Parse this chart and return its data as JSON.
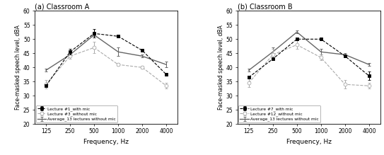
{
  "freqs": [
    125,
    250,
    500,
    1000,
    2000,
    4000
  ],
  "classroom_A": {
    "title": "(a) Classroom A",
    "y_with_mic": [
      33.5,
      45.5,
      52.0,
      51.0,
      46.0,
      37.5
    ],
    "yerr_with_mic": [
      0.5,
      1.0,
      1.5,
      0.5,
      0.5,
      0.5
    ],
    "y_without_mic": [
      34.0,
      44.0,
      47.0,
      41.0,
      40.0,
      33.5
    ],
    "yerr_without_mic": [
      1.5,
      1.0,
      2.0,
      0.5,
      0.5,
      1.0
    ],
    "y_average": [
      39.0,
      44.5,
      51.5,
      45.5,
      44.0,
      41.0
    ],
    "yerr_average": [
      0.5,
      0.5,
      0.5,
      1.5,
      0.5,
      1.0
    ],
    "legend1": "Lecture #1_with mic",
    "legend2": "Lecture #3_without mic",
    "legend3": "Average_13 lectures without mic"
  },
  "classroom_B": {
    "title": "(b) Classroom B",
    "y_with_mic": [
      36.5,
      43.0,
      50.0,
      50.0,
      44.0,
      37.0
    ],
    "yerr_with_mic": [
      0.5,
      0.5,
      0.5,
      0.5,
      0.5,
      1.5
    ],
    "y_without_mic": [
      34.5,
      44.5,
      48.0,
      43.5,
      34.0,
      33.5
    ],
    "yerr_without_mic": [
      1.5,
      2.0,
      1.5,
      1.0,
      1.5,
      1.0
    ],
    "y_average": [
      39.0,
      45.5,
      52.5,
      45.5,
      44.5,
      41.0
    ],
    "yerr_average": [
      0.5,
      1.5,
      0.5,
      1.0,
      0.5,
      0.5
    ],
    "legend1": "Lecture #7_with mic",
    "legend2": "Lecture #12_without mic",
    "legend3": "Average_13 lectures without mic"
  },
  "ylabel": "Face-masked speech level, dBA",
  "xlabel": "Frequency, Hz",
  "ylim": [
    20,
    60
  ],
  "yticks": [
    20,
    25,
    30,
    35,
    40,
    45,
    50,
    55,
    60
  ],
  "xtick_labels": [
    "125",
    "250",
    "500",
    "1000",
    "2000",
    "4000"
  ],
  "color_with_mic": "#000000",
  "color_without_mic": "#aaaaaa",
  "color_average": "#666666",
  "figsize": [
    5.43,
    2.19
  ],
  "dpi": 100
}
